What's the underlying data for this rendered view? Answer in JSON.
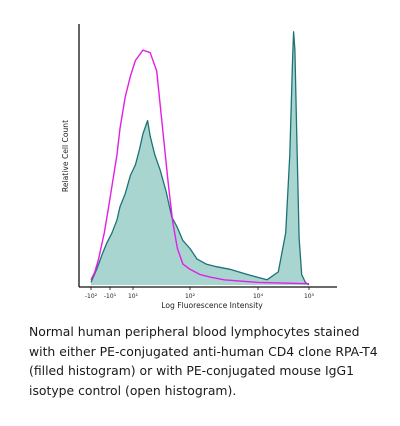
{
  "chart_data": {
    "type": "area",
    "xlabel": "Log Fluorescence Intensity",
    "ylabel": "Relative Cell Count",
    "x_scale": "biexponential",
    "x_ticks": [
      {
        "label": "-10²",
        "value": -100
      },
      {
        "label": "-10¹",
        "value": -10
      },
      {
        "label": "10¹",
        "value": 10
      },
      {
        "label": "10²",
        "value": 100
      },
      {
        "label": "10⁴",
        "value": 10000
      },
      {
        "label": "10⁵",
        "value": 100000
      }
    ],
    "ylim": [
      0,
      1
    ],
    "series": [
      {
        "color": "#e21fe3",
        "fill": "none",
        "points": [
          [
            -100,
            0.02
          ],
          [
            -63,
            0.05
          ],
          [
            -40,
            0.1
          ],
          [
            -20,
            0.2
          ],
          [
            -13,
            0.28
          ],
          [
            -8,
            0.38
          ],
          [
            -3,
            0.5
          ],
          [
            0,
            0.6
          ],
          [
            4,
            0.72
          ],
          [
            8,
            0.8
          ],
          [
            11,
            0.86
          ],
          [
            15,
            0.9
          ],
          [
            20,
            0.89
          ],
          [
            26,
            0.82
          ],
          [
            33,
            0.6
          ],
          [
            42,
            0.38
          ],
          [
            50,
            0.24
          ],
          [
            60,
            0.14
          ],
          [
            75,
            0.08
          ],
          [
            100,
            0.06
          ],
          [
            200,
            0.04
          ],
          [
            400,
            0.03
          ],
          [
            1000,
            0.02
          ],
          [
            10000,
            0.01
          ],
          [
            100000,
            0.005
          ]
        ]
      },
      {
        "color": "#1e7277",
        "fill": "#a9d5d0",
        "points": [
          [
            -100,
            0.01
          ],
          [
            -50,
            0.06
          ],
          [
            -25,
            0.12
          ],
          [
            -15,
            0.16
          ],
          [
            -8,
            0.2
          ],
          [
            -3,
            0.25
          ],
          [
            0,
            0.3
          ],
          [
            4,
            0.35
          ],
          [
            8,
            0.42
          ],
          [
            11,
            0.46
          ],
          [
            13,
            0.52
          ],
          [
            15,
            0.58
          ],
          [
            18,
            0.63
          ],
          [
            20,
            0.57
          ],
          [
            24,
            0.5
          ],
          [
            30,
            0.44
          ],
          [
            38,
            0.36
          ],
          [
            48,
            0.26
          ],
          [
            60,
            0.22
          ],
          [
            75,
            0.17
          ],
          [
            100,
            0.14
          ],
          [
            160,
            0.1
          ],
          [
            300,
            0.08
          ],
          [
            600,
            0.07
          ],
          [
            1500,
            0.06
          ],
          [
            5000,
            0.04
          ],
          [
            15000,
            0.02
          ],
          [
            25000,
            0.05
          ],
          [
            35000,
            0.2
          ],
          [
            42000,
            0.5
          ],
          [
            48000,
            0.88
          ],
          [
            50000,
            0.97
          ],
          [
            53000,
            0.9
          ],
          [
            58000,
            0.55
          ],
          [
            64000,
            0.18
          ],
          [
            72000,
            0.04
          ],
          [
            85000,
            0.01
          ],
          [
            100000,
            0.0
          ]
        ]
      }
    ]
  },
  "caption": "Normal human peripheral blood lymphocytes stained with either PE-conjugated anti-human CD4 clone RPA-T4 (filled histogram) or with PE-conjugated mouse IgG1 isotype control (open histogram).",
  "colors": {
    "isotype": "#e21fe3",
    "stained_line": "#1e7277",
    "stained_fill": "#a9d5d0",
    "axis": "#111111"
  }
}
